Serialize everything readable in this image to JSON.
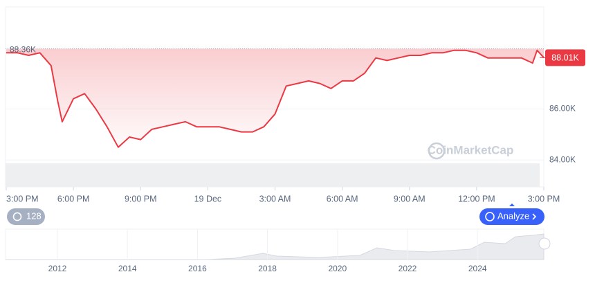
{
  "chart_data": {
    "type": "line",
    "x": [
      0,
      0.5,
      1,
      1.5,
      2,
      2.3,
      2.5,
      3,
      3.5,
      4,
      4.5,
      5,
      5.5,
      6,
      6.5,
      7,
      7.5,
      8,
      8.5,
      9,
      9.5,
      10,
      10.5,
      11,
      11.5,
      12,
      12.5,
      13,
      13.5,
      14,
      14.5,
      15,
      15.5,
      16,
      16.5,
      17,
      17.5,
      18,
      18.5,
      19,
      19.5,
      20,
      20.5,
      21,
      21.5,
      22,
      22.5,
      23,
      23.5,
      23.7,
      24
    ],
    "series": [
      {
        "color": "#ea3943",
        "values": [
          88200,
          88200,
          88100,
          88200,
          87700,
          86300,
          85500,
          86400,
          86600,
          86000,
          85300,
          84500,
          84900,
          84800,
          85200,
          85300,
          85400,
          85500,
          85300,
          85300,
          85300,
          85200,
          85100,
          85100,
          85300,
          85800,
          86900,
          87000,
          87100,
          87000,
          86800,
          87100,
          87100,
          87400,
          88000,
          87900,
          88000,
          88100,
          88100,
          88200,
          88200,
          88300,
          88300,
          88200,
          88000,
          88000,
          88000,
          88000,
          87800,
          88300,
          88010
        ]
      }
    ],
    "up_color": "#16c784",
    "xlim": [
      0,
      24
    ],
    "xticks": [
      {
        "value": 0,
        "label": "3:00 PM"
      },
      {
        "value": 3,
        "label": "6:00 PM"
      },
      {
        "value": 6,
        "label": "9:00 PM"
      },
      {
        "value": 9,
        "label": "19 Dec"
      },
      {
        "value": 12,
        "label": "3:00 AM"
      },
      {
        "value": 15,
        "label": "6:00 AM"
      },
      {
        "value": 18,
        "label": "9:00 AM"
      },
      {
        "value": 21,
        "label": "12:00 PM"
      },
      {
        "value": 24,
        "label": "3:00 PM"
      }
    ],
    "ylim": [
      83000,
      90000
    ],
    "yticks": [
      {
        "value": 84000,
        "label": "84.00K"
      },
      {
        "value": 86000,
        "label": "86.00K"
      }
    ],
    "reference": {
      "value": 88360,
      "label": "88.36K"
    },
    "last_price": {
      "value": 88010,
      "label": "88.01K"
    },
    "watermark": "CoinMarketCap",
    "history_badge": "128",
    "analyze_button": "Analyze",
    "navigator_years": [
      "2012",
      "2014",
      "2016",
      "2018",
      "2020",
      "2022",
      "2024"
    ]
  }
}
